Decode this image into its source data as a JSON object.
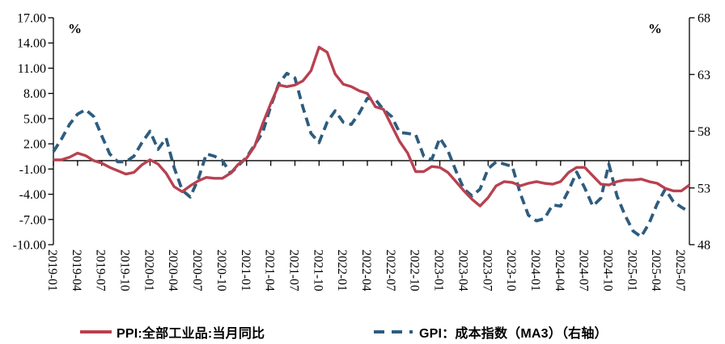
{
  "chart": {
    "unit_left": "%",
    "unit_right": "%"
  },
  "chart_data": {
    "type": "line",
    "title": "",
    "x_freq": "monthly",
    "x_start": "2019-01",
    "x_end": "2025-08",
    "x_tick_labels": [
      "2019-01",
      "2019-04",
      "2019-07",
      "2019-10",
      "2020-01",
      "2020-04",
      "2020-07",
      "2020-10",
      "2021-01",
      "2021-04",
      "2021-07",
      "2021-10",
      "2022-01",
      "2022-04",
      "2022-07",
      "2022-10",
      "2023-01",
      "2023-04",
      "2023-07",
      "2023-10",
      "2024-01",
      "2024-04",
      "2024-07",
      "2024-10",
      "2025-01",
      "2025-04",
      "2025-07"
    ],
    "left_axis": {
      "label": "%",
      "min": -10,
      "max": 17,
      "tick_labels": [
        "17.00",
        "14.00",
        "11.00",
        "8.00",
        "5.00",
        "2.00",
        "-1.00",
        "-4.00",
        "-7.00",
        "-10.00"
      ]
    },
    "right_axis": {
      "label": "%",
      "min": 48,
      "max": 68,
      "tick_labels": [
        "68",
        "63",
        "58",
        "53",
        "48"
      ]
    },
    "grid": false,
    "legend_position": "bottom",
    "series": [
      {
        "name": "PPI:全部工业品:当月同比",
        "axis": "left",
        "style": "solid",
        "color": "#b84150",
        "values": [
          0.1,
          0.1,
          0.4,
          0.9,
          0.6,
          0.0,
          -0.3,
          -0.8,
          -1.2,
          -1.6,
          -1.4,
          -0.5,
          0.1,
          -0.4,
          -1.5,
          -3.1,
          -3.7,
          -3.0,
          -2.4,
          -2.0,
          -2.1,
          -2.1,
          -1.5,
          -0.4,
          0.3,
          1.7,
          4.4,
          6.8,
          9.0,
          8.8,
          9.0,
          9.5,
          10.7,
          13.5,
          12.9,
          10.3,
          9.1,
          8.8,
          8.3,
          8.0,
          6.4,
          6.1,
          4.2,
          2.3,
          0.9,
          -1.3,
          -1.3,
          -0.7,
          -0.8,
          -1.4,
          -2.5,
          -3.6,
          -4.6,
          -5.4,
          -4.4,
          -3.0,
          -2.5,
          -2.6,
          -3.0,
          -2.7,
          -2.5,
          -2.7,
          -2.8,
          -2.5,
          -1.4,
          -0.8,
          -0.8,
          -1.8,
          -2.8,
          -2.9,
          -2.5,
          -2.3,
          -2.3,
          -2.2,
          -2.5,
          -2.7,
          -3.3,
          -3.6,
          -3.6,
          -2.9
        ]
      },
      {
        "name": "GPI：成本指数（MA3）（右轴）",
        "axis": "right",
        "style": "dashed",
        "color": "#2e5c7e",
        "values": [
          56.2,
          57.3,
          58.6,
          59.5,
          59.9,
          59.3,
          57.6,
          56.0,
          55.3,
          55.3,
          55.8,
          57.0,
          58.0,
          56.4,
          57.4,
          54.8,
          52.8,
          52.2,
          53.8,
          56.0,
          55.8,
          55.4,
          54.3,
          55.0,
          55.7,
          56.8,
          57.9,
          60.2,
          62.2,
          63.1,
          62.7,
          60.1,
          57.8,
          57.0,
          58.8,
          59.8,
          58.8,
          58.6,
          59.6,
          60.9,
          60.8,
          59.9,
          59.3,
          57.9,
          57.8,
          57.7,
          55.8,
          55.5,
          57.4,
          56.3,
          54.5,
          52.9,
          52.3,
          52.9,
          54.7,
          55.3,
          55.1,
          54.9,
          52.5,
          50.6,
          50.1,
          50.3,
          51.5,
          51.4,
          52.8,
          54.4,
          53.0,
          51.4,
          52.1,
          55.1,
          52.3,
          50.6,
          49.2,
          48.7,
          49.9,
          51.6,
          52.9,
          51.8,
          51.3,
          50.9
        ]
      }
    ]
  }
}
